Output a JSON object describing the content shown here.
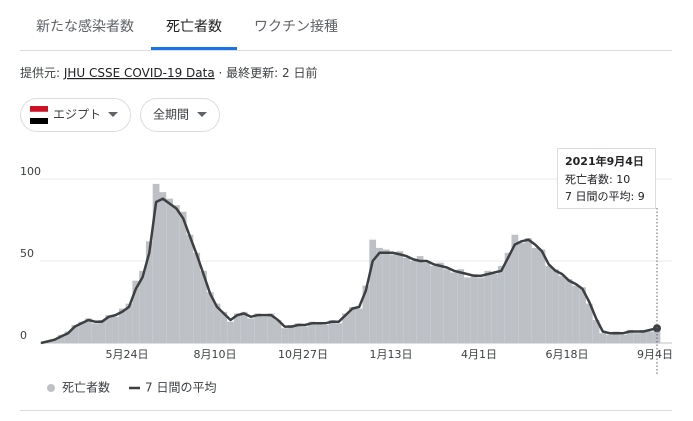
{
  "tabs": [
    "新たな感染者数",
    "死亡者数",
    "ワクチン接種"
  ],
  "source": {
    "prefix": "提供元: ",
    "link": "JHU CSSE COVID-19 Data",
    "updated": " · 最終更新: 2 日前"
  },
  "filters": {
    "country": "エジプト",
    "period": "全期間"
  },
  "tooltip": {
    "date": "2021年9月4日",
    "daily": "死亡者数: 10",
    "average": "7 日間の平均: 9"
  },
  "chart_data": {
    "type": "bar_line",
    "categories": [
      null,
      null,
      null,
      null,
      null,
      null,
      null,
      null,
      null,
      null,
      null,
      null,
      null,
      "5月24日",
      null,
      null,
      null,
      null,
      null,
      null,
      null,
      null,
      null,
      null,
      null,
      null,
      "8月10日",
      null,
      null,
      null,
      null,
      null,
      null,
      null,
      null,
      null,
      null,
      null,
      null,
      "10月27日",
      null,
      null,
      null,
      null,
      null,
      null,
      null,
      null,
      null,
      null,
      null,
      null,
      "1月13日",
      null,
      null,
      null,
      null,
      null,
      null,
      null,
      null,
      null,
      null,
      null,
      null,
      "4月1日",
      null,
      null,
      null,
      null,
      null,
      null,
      null,
      null,
      null,
      null,
      null,
      null,
      "6月18日",
      null,
      null,
      null,
      null,
      null,
      null,
      null,
      null,
      null,
      null,
      null,
      null,
      "9月4日"
    ],
    "series": [
      {
        "name": "死亡者数",
        "color": "#bdc1c6",
        "kind": "bar",
        "values": [
          0,
          1,
          2,
          5,
          7,
          11,
          13,
          15,
          12,
          14,
          17,
          16,
          21,
          24,
          38,
          44,
          62,
          97,
          92,
          88,
          84,
          80,
          66,
          55,
          44,
          31,
          24,
          19,
          13,
          18,
          19,
          15,
          18,
          16,
          18,
          14,
          9,
          11,
          12,
          10,
          13,
          12,
          11,
          14,
          12,
          18,
          22,
          21,
          35,
          63,
          58,
          57,
          54,
          56,
          52,
          50,
          53,
          49,
          47,
          49,
          45,
          43,
          45,
          40,
          42,
          40,
          44,
          42,
          47,
          55,
          66,
          61,
          64,
          58,
          57,
          47,
          45,
          41,
          39,
          35,
          34,
          24,
          14,
          6,
          5,
          7,
          5,
          8,
          6,
          8,
          7,
          10
        ]
      },
      {
        "name": "7 日間の平均",
        "color": "#3c4043",
        "kind": "line",
        "values": [
          0,
          1,
          2,
          4,
          6,
          10,
          12,
          14,
          13,
          13,
          16,
          17,
          19,
          22,
          33,
          40,
          55,
          86,
          88,
          85,
          82,
          76,
          65,
          54,
          42,
          30,
          22,
          18,
          14,
          17,
          18,
          16,
          17,
          17,
          17,
          14,
          10,
          10,
          11,
          11,
          12,
          12,
          12,
          13,
          13,
          17,
          21,
          22,
          32,
          50,
          55,
          55,
          55,
          54,
          53,
          51,
          50,
          50,
          48,
          47,
          46,
          44,
          43,
          42,
          41,
          41,
          42,
          43,
          44,
          52,
          60,
          62,
          63,
          60,
          56,
          48,
          44,
          42,
          38,
          36,
          33,
          25,
          15,
          7,
          6,
          6,
          6,
          7,
          7,
          7,
          8,
          9
        ]
      }
    ],
    "ylim": [
      0,
      100
    ],
    "yticks": [
      0,
      50,
      100
    ],
    "grid": true
  }
}
